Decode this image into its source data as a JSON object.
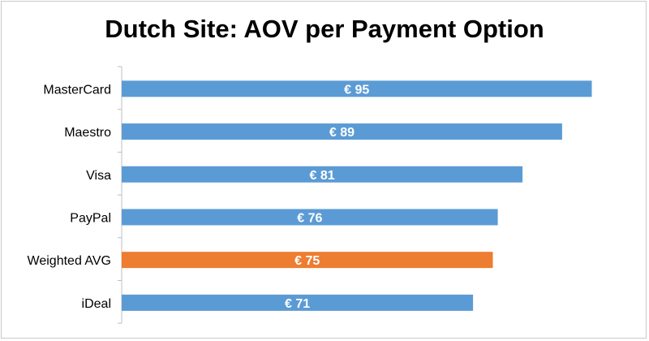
{
  "colors": {
    "bar_default": "#5B9BD5",
    "bar_highlight": "#ED7D31",
    "axis": "#bfbfbf",
    "label_text": "#000000",
    "value_text": "#ffffff"
  },
  "chart_data": {
    "type": "bar",
    "orientation": "horizontal",
    "title": "Dutch Site: AOV per Payment Option",
    "categories": [
      "MasterCard",
      "Maestro",
      "Visa",
      "PayPal",
      "Weighted AVG",
      "iDeal"
    ],
    "values": [
      95,
      89,
      81,
      76,
      75,
      71
    ],
    "value_labels": [
      "€ 95",
      "€ 89",
      "€ 81",
      "€ 76",
      "€ 75",
      "€ 71"
    ],
    "highlight_category": "Weighted AVG",
    "xlim": [
      0,
      100
    ],
    "grid": false,
    "legend": "none"
  }
}
